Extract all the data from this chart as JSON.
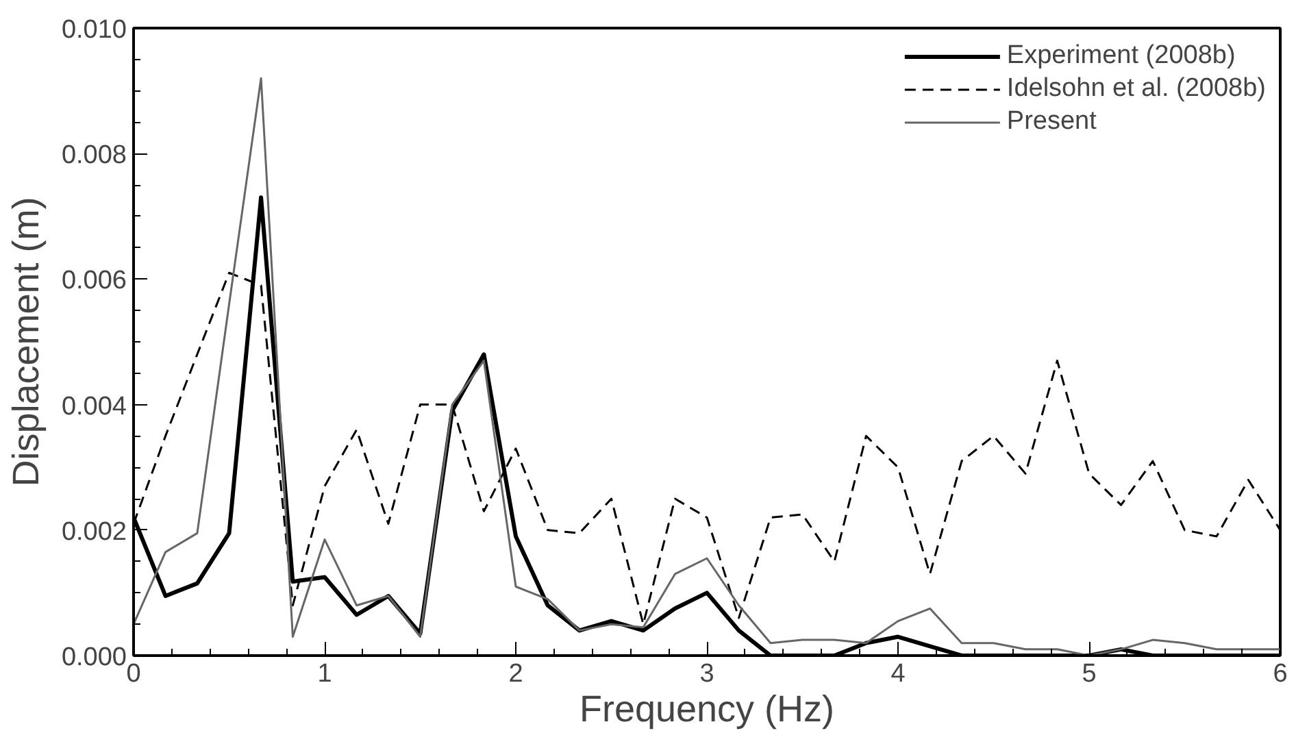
{
  "chart_data": {
    "type": "line",
    "xlabel": "Frequency (Hz)",
    "ylabel": "Displacement (m)",
    "x": [
      0,
      0.167,
      0.333,
      0.5,
      0.667,
      0.833,
      1,
      1.167,
      1.333,
      1.5,
      1.667,
      1.833,
      2,
      2.167,
      2.333,
      2.5,
      2.667,
      2.833,
      3,
      3.167,
      3.333,
      3.5,
      3.667,
      3.833,
      4,
      4.167,
      4.333,
      4.5,
      4.667,
      4.833,
      5,
      5.167,
      5.333,
      5.5,
      5.667,
      5.833,
      6
    ],
    "series": [
      {
        "name": "Experiment (2008b)",
        "color": "#000000",
        "line_style": "solid",
        "values": [
          0.0022,
          0.00095,
          0.00115,
          0.00195,
          0.0073,
          0.00118,
          0.00125,
          0.00065,
          0.00095,
          0.00035,
          0.0039,
          0.0048,
          0.0019,
          0.0008,
          0.0004,
          0.00055,
          0.0004,
          0.00075,
          0.001,
          0.0004,
          0.0,
          0.0,
          0.0,
          0.0002,
          0.0003,
          0.00015,
          0.0,
          0.0,
          0.0,
          0.0,
          0.0,
          0.0001,
          0.0,
          0.0,
          0.0,
          0.0,
          0.0
        ]
      },
      {
        "name": "Idelsohn et al. (2008b)",
        "color": "#000000",
        "line_style": "dashed",
        "values": [
          0.0021,
          0.0035,
          0.0048,
          0.0061,
          0.0059,
          0.0008,
          0.0027,
          0.0036,
          0.0021,
          0.004,
          0.004,
          0.0023,
          0.0033,
          0.002,
          0.00195,
          0.0025,
          0.0005,
          0.0025,
          0.0022,
          0.0006,
          0.0022,
          0.00225,
          0.0015,
          0.0035,
          0.003,
          0.0013,
          0.0031,
          0.0035,
          0.0029,
          0.0047,
          0.0029,
          0.0024,
          0.0031,
          0.002,
          0.0019,
          0.0028,
          0.002
        ]
      },
      {
        "name": "Present",
        "color": "#666666",
        "line_style": "solid",
        "values": [
          0.0005,
          0.00165,
          0.00195,
          0.0056,
          0.0092,
          0.0003,
          0.00185,
          0.0008,
          0.00095,
          0.0003,
          0.004,
          0.0047,
          0.0011,
          0.0009,
          0.0004,
          0.0005,
          0.00045,
          0.0013,
          0.00155,
          0.0008,
          0.0002,
          0.00025,
          0.00025,
          0.0002,
          0.00055,
          0.00075,
          0.0002,
          0.0002,
          0.0001,
          0.0001,
          0.0,
          0.0001,
          0.00025,
          0.0002,
          0.0001,
          0.0001,
          0.0001
        ]
      }
    ],
    "xlim": [
      0,
      6
    ],
    "ylim": [
      0,
      0.01
    ],
    "xticks": [
      0,
      1,
      2,
      3,
      4,
      5,
      6
    ],
    "yticks": [
      {
        "value": 0,
        "label": "0.000"
      },
      {
        "value": 0.002,
        "label": "0.002"
      },
      {
        "value": 0.004,
        "label": "0.004"
      },
      {
        "value": 0.006,
        "label": "0.006"
      },
      {
        "value": 0.008,
        "label": "0.008"
      },
      {
        "value": 0.01,
        "label": "0.010"
      }
    ],
    "grid": false,
    "legend": "top right",
    "marker": "none"
  }
}
